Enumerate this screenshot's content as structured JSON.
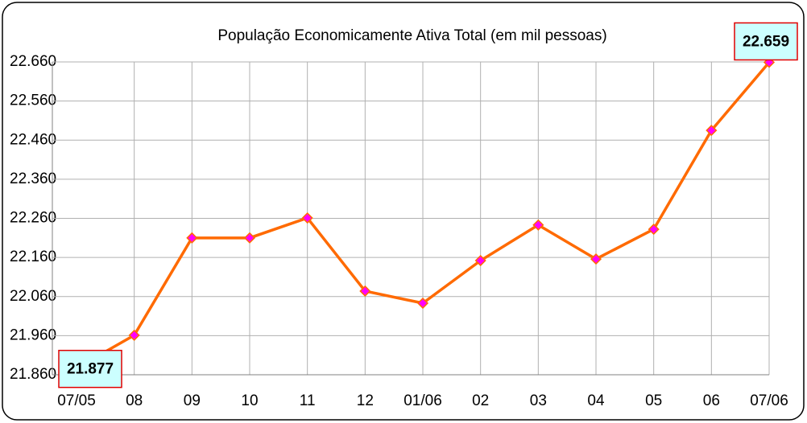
{
  "chart_data": {
    "type": "line",
    "title": "População Economicamente Ativa Total (em mil  pessoas)",
    "categories": [
      "07/05",
      "08",
      "09",
      "10",
      "11",
      "12",
      "01/06",
      "02",
      "03",
      "04",
      "05",
      "06",
      "07/06"
    ],
    "series": [
      {
        "name": "População Economicamente Ativa Total",
        "color": "#ff6a00",
        "marker_color": "#ff00ff",
        "values": [
          21877,
          21961,
          22210,
          22210,
          22261,
          22074,
          22043,
          22152,
          22243,
          22156,
          22232,
          22485,
          22659
        ],
        "value_labels": [
          "21.877",
          null,
          null,
          null,
          null,
          null,
          null,
          null,
          null,
          null,
          null,
          null,
          "22.659"
        ]
      }
    ],
    "ylim": [
      21860,
      22660
    ],
    "yticks": [
      {
        "value": 21860,
        "label": "21.860"
      },
      {
        "value": 21960,
        "label": "21.960"
      },
      {
        "value": 22060,
        "label": "22.060"
      },
      {
        "value": 22160,
        "label": "22.160"
      },
      {
        "value": 22260,
        "label": "22.260"
      },
      {
        "value": 22360,
        "label": "22.360"
      },
      {
        "value": 22460,
        "label": "22.460"
      },
      {
        "value": 22560,
        "label": "22.560"
      },
      {
        "value": 22660,
        "label": "22.660"
      }
    ],
    "grid": true
  }
}
